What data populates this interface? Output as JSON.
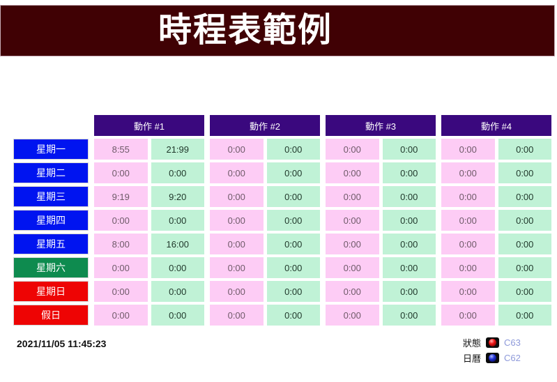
{
  "title": "時程表範例",
  "table": {
    "action_headers": [
      "動作 #1",
      "動作 #2",
      "動作 #3",
      "動作 #4"
    ],
    "rows": [
      {
        "day": "星期一",
        "day_color": "#0014f0",
        "times": [
          "8:55",
          "21:99",
          "0:00",
          "0:00",
          "0:00",
          "0:00",
          "0:00",
          "0:00"
        ]
      },
      {
        "day": "星期二",
        "day_color": "#0014f0",
        "times": [
          "0:00",
          "0:00",
          "0:00",
          "0:00",
          "0:00",
          "0:00",
          "0:00",
          "0:00"
        ]
      },
      {
        "day": "星期三",
        "day_color": "#0014f0",
        "times": [
          "9:19",
          "9:20",
          "0:00",
          "0:00",
          "0:00",
          "0:00",
          "0:00",
          "0:00"
        ]
      },
      {
        "day": "星期四",
        "day_color": "#0014f0",
        "times": [
          "0:00",
          "0:00",
          "0:00",
          "0:00",
          "0:00",
          "0:00",
          "0:00",
          "0:00"
        ]
      },
      {
        "day": "星期五",
        "day_color": "#0014f0",
        "times": [
          "8:00",
          "16:00",
          "0:00",
          "0:00",
          "0:00",
          "0:00",
          "0:00",
          "0:00"
        ]
      },
      {
        "day": "星期六",
        "day_color": "#0e8b4f",
        "times": [
          "0:00",
          "0:00",
          "0:00",
          "0:00",
          "0:00",
          "0:00",
          "0:00",
          "0:00"
        ]
      },
      {
        "day": "星期日",
        "day_color": "#ee0404",
        "times": [
          "0:00",
          "0:00",
          "0:00",
          "0:00",
          "0:00",
          "0:00",
          "0:00",
          "0:00"
        ]
      },
      {
        "day": "假日",
        "day_color": "#ee0404",
        "times": [
          "0:00",
          "0:00",
          "0:00",
          "0:00",
          "0:00",
          "0:00",
          "0:00",
          "0:00"
        ]
      }
    ]
  },
  "footer": {
    "timestamp": "2021/11/05 11:45:23",
    "legend": [
      {
        "label": "狀態",
        "link": "C63",
        "icon": "status-led-icon",
        "led": {
          "highlight": "#ffb4b4",
          "core": "#ee1212",
          "edge": "#5a0000"
        }
      },
      {
        "label": "日曆",
        "link": "C62",
        "icon": "calendar-led-icon",
        "led": {
          "highlight": "#b0bcff",
          "core": "#2232d4",
          "edge": "#000048"
        }
      }
    ]
  },
  "colors": {
    "titlebar": "#400104",
    "titlebar_border": "#c9aeb8",
    "action_header": "#3a087e",
    "weekday": "#0014f0",
    "saturday": "#0e8b4f",
    "holiday": "#ee0404",
    "start_cell": "#fdccf5",
    "end_cell": "#c0f2d6",
    "start_text": "#6e5a68",
    "end_text": "#1e3629",
    "link": "#8d99da"
  }
}
